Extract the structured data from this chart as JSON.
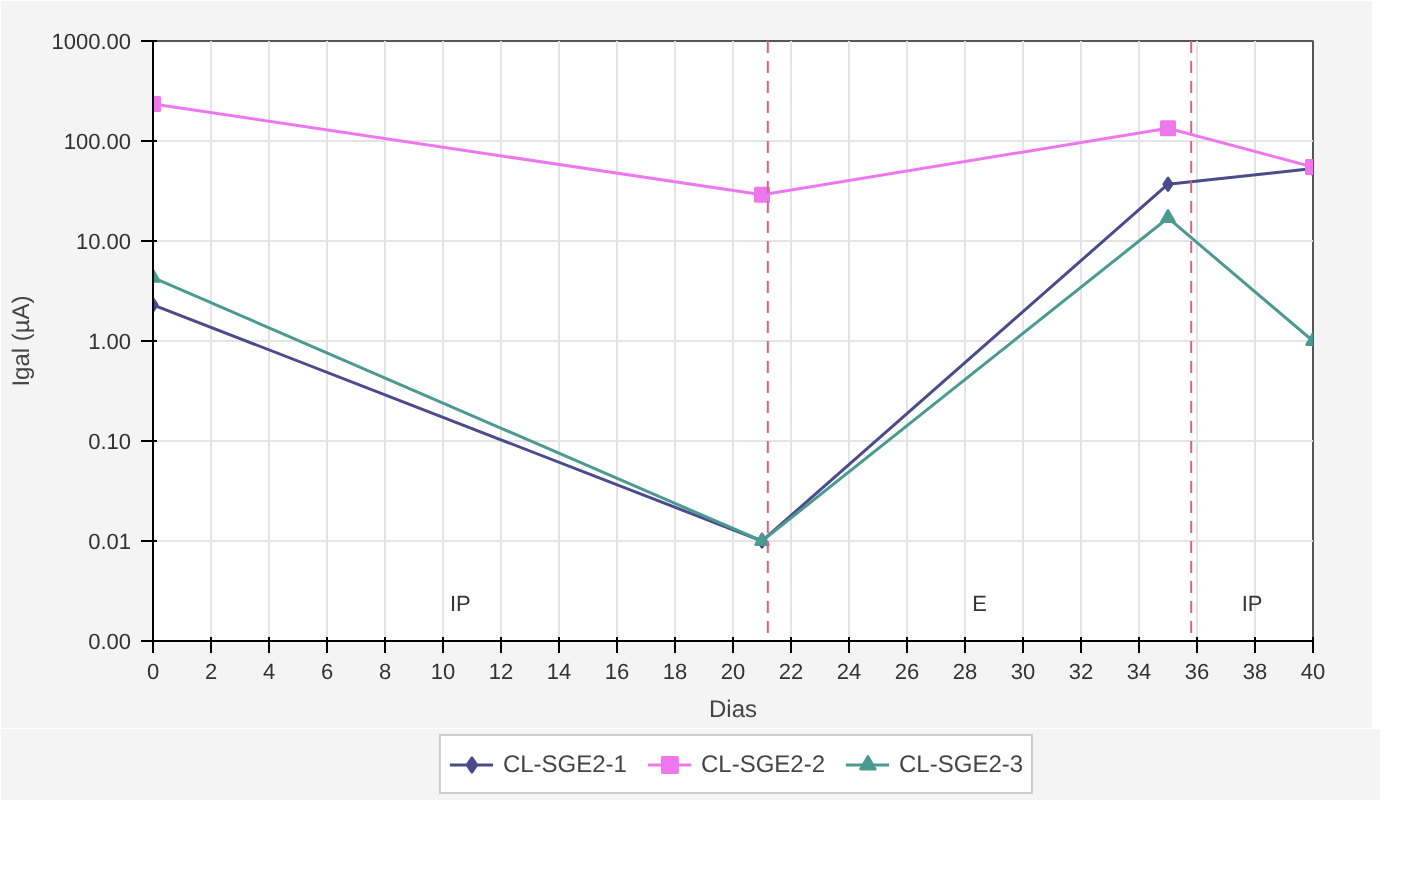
{
  "chart_data": {
    "type": "line",
    "xlabel": "Dias",
    "ylabel": "Igal (µA)",
    "log": "y",
    "x": [
      0,
      21,
      35,
      40
    ],
    "series": [
      {
        "name": "CL-SGE2-1",
        "color": "#4b4a8a",
        "marker": "diamond",
        "values": [
          2.3,
          0.01,
          37,
          53
        ]
      },
      {
        "name": "CL-SGE2-2",
        "color": "#ee77ee",
        "marker": "square",
        "values": [
          235,
          29,
          134,
          55
        ]
      },
      {
        "name": "CL-SGE2-3",
        "color": "#4a9a90",
        "marker": "triangle",
        "values": [
          4.3,
          0.01,
          17,
          1.0
        ]
      }
    ],
    "xlim": [
      0,
      40
    ],
    "xticks": [
      0,
      2,
      4,
      6,
      8,
      10,
      12,
      14,
      16,
      18,
      20,
      22,
      24,
      26,
      28,
      30,
      32,
      34,
      36,
      38,
      40
    ],
    "ylim": [
      0.001,
      1000
    ],
    "yticks": [
      {
        "value": 0.001,
        "label": "0.00"
      },
      {
        "value": 0.01,
        "label": "0.01"
      },
      {
        "value": 0.1,
        "label": "0.10"
      },
      {
        "value": 1,
        "label": "1.00"
      },
      {
        "value": 10,
        "label": "10.00"
      },
      {
        "value": 100,
        "label": "100.00"
      },
      {
        "value": 1000,
        "label": "1000.00"
      }
    ],
    "ref_lines": [
      {
        "axis": "x",
        "value": 21.2,
        "color": "#e06080",
        "line_style": "dashed"
      },
      {
        "axis": "x",
        "value": 35.8,
        "color": "#e06080",
        "line_style": "dashed"
      }
    ],
    "annotations": [
      "IP",
      "E",
      "IP"
    ],
    "grid": true,
    "legend": "bottom",
    "line_style": "solid"
  }
}
